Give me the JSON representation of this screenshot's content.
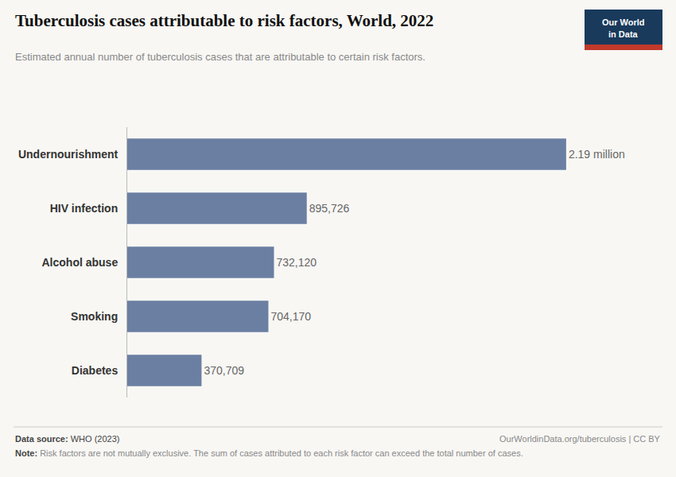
{
  "chart_data": {
    "type": "bar",
    "orientation": "horizontal",
    "title": "Tuberculosis cases attributable to risk factors, World, 2022",
    "subtitle": "Estimated annual number of tuberculosis cases that are attributable to certain risk factors.",
    "categories": [
      "Undernourishment",
      "HIV infection",
      "Alcohol abuse",
      "Smoking",
      "Diabetes"
    ],
    "values": [
      2190000,
      895726,
      732120,
      704170,
      370709
    ],
    "value_labels": [
      "2.19 million",
      "895,726",
      "732,120",
      "704,170",
      "370,709"
    ],
    "data_labels": true,
    "color": "#6b7fa3",
    "xlim": [
      0,
      2500000
    ],
    "tick_labels": "y",
    "grid": false,
    "annotations": [
      "Data source:",
      "WHO (2023)",
      "OurWorldinData.org/tuberculosis | CC BY",
      "Note:",
      "Risk factors are not mutually exclusive. The sum of cases attributed to each risk factor can exceed the total number of cases.",
      "Our World",
      "in Data"
    ]
  }
}
